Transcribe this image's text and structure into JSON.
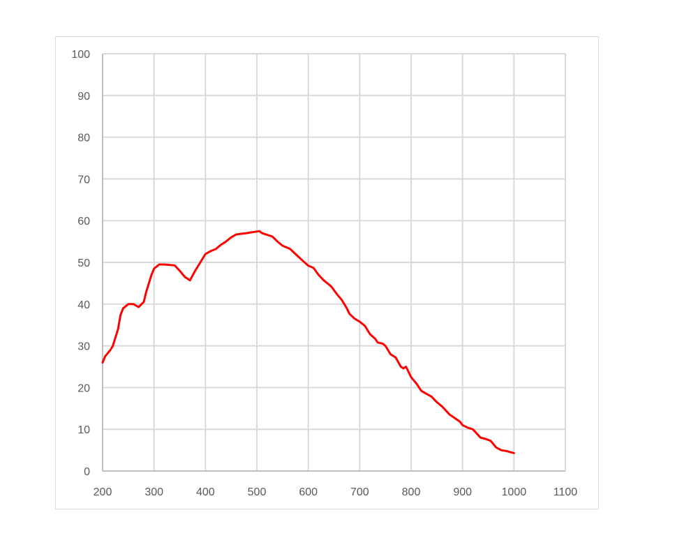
{
  "chart_data": {
    "type": "line",
    "title": "",
    "xlabel": "",
    "ylabel": "",
    "xlim": [
      200,
      1100
    ],
    "ylim": [
      0,
      100
    ],
    "x_ticks": [
      "200",
      "300",
      "400",
      "500",
      "600",
      "700",
      "800",
      "900",
      "1000",
      "1100"
    ],
    "y_ticks": [
      "0",
      "10",
      "20",
      "30",
      "40",
      "50",
      "60",
      "70",
      "80",
      "90",
      "100"
    ],
    "grid": true,
    "legend": "none",
    "series": [
      {
        "color": "#ff0000",
        "x": [
          200,
          205,
          215,
          220,
          230,
          235,
          240,
          250,
          260,
          270,
          280,
          285,
          295,
          300,
          310,
          320,
          340,
          350,
          360,
          370,
          380,
          390,
          400,
          410,
          420,
          430,
          440,
          450,
          460,
          480,
          490,
          505,
          510,
          530,
          540,
          550,
          565,
          575,
          590,
          600,
          610,
          620,
          630,
          645,
          655,
          665,
          675,
          680,
          690,
          700,
          710,
          720,
          730,
          735,
          745,
          750,
          760,
          770,
          780,
          785,
          790,
          800,
          810,
          820,
          830,
          840,
          850,
          860,
          875,
          885,
          895,
          900,
          910,
          920,
          935,
          945,
          955,
          965,
          975,
          985,
          1000
        ],
        "y": [
          26,
          27.5,
          29,
          30,
          34,
          37.5,
          39,
          40,
          40,
          39.3,
          40.5,
          43,
          47,
          48.5,
          49.5,
          49.5,
          49.3,
          48,
          46.5,
          45.7,
          48,
          50,
          52,
          52.7,
          53.2,
          54.2,
          55,
          56,
          56.7,
          57,
          57.2,
          57.5,
          57,
          56.2,
          55,
          54,
          53.2,
          52,
          50.3,
          49.2,
          48.7,
          47,
          45.7,
          44.2,
          42.5,
          41,
          39,
          37.7,
          36.5,
          35.8,
          34.8,
          32.8,
          31.7,
          30.8,
          30.5,
          30,
          28,
          27.2,
          25,
          24.6,
          25,
          22.5,
          21,
          19.2,
          18.5,
          17.8,
          16.5,
          15.5,
          13.5,
          12.7,
          11.8,
          11,
          10.4,
          10,
          8,
          7.7,
          7.2,
          5.7,
          5,
          4.8,
          4.3
        ]
      }
    ]
  }
}
